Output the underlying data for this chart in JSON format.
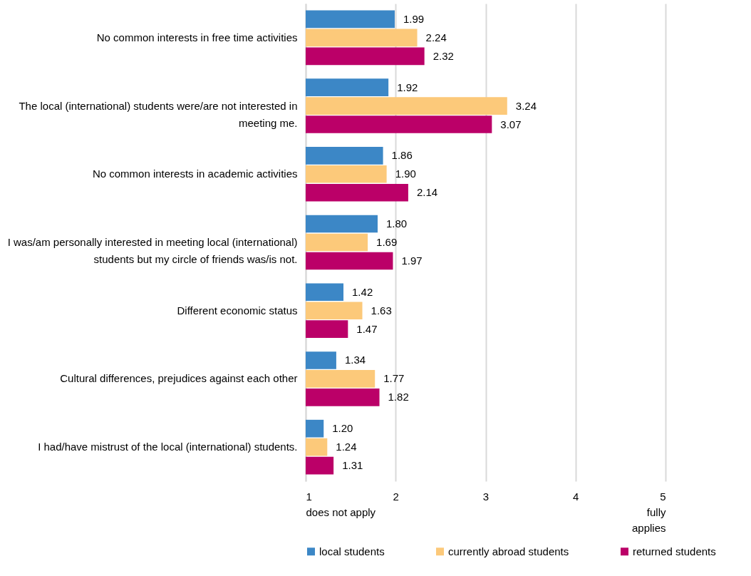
{
  "chart_data": {
    "type": "bar",
    "orientation": "horizontal",
    "categories": [
      "No common interests in free time activities",
      "The local (international) students were/are not interested in meeting me.",
      "No common interests in academic activities",
      "I was/am  personally interested in meeting local (international) students but my circle of friends was/is not.",
      "Different economic status",
      "Cultural differences, prejudices against each other",
      "I had/have mistrust of the local (international) students."
    ],
    "series": [
      {
        "name": "local students",
        "color": "#3c87c6",
        "values": [
          1.99,
          1.92,
          1.86,
          1.8,
          1.42,
          1.34,
          1.2
        ],
        "value_labels": [
          "1.99",
          "1.92",
          "1.86",
          "1.80",
          "1.42",
          "1.34",
          "1.20"
        ]
      },
      {
        "name": "currently abroad students",
        "color": "#fcc97a",
        "values": [
          2.24,
          3.24,
          1.9,
          1.69,
          1.63,
          1.77,
          1.24
        ],
        "value_labels": [
          "2.24",
          "3.24",
          "1.90",
          "1.69",
          "1.63",
          "1.77",
          "1.24"
        ]
      },
      {
        "name": "returned students",
        "color": "#bb0068",
        "values": [
          2.32,
          3.07,
          2.14,
          1.97,
          1.47,
          1.82,
          1.31
        ],
        "value_labels": [
          "2.32",
          "3.07",
          "2.14",
          "1.97",
          "1.47",
          "1.82",
          "1.31"
        ]
      }
    ],
    "xlim": [
      1,
      5
    ],
    "xticks": [
      {
        "value": 1,
        "label": "1\ndoes not apply"
      },
      2,
      3,
      4,
      {
        "value": 5,
        "label": "5\nfully\napplies"
      }
    ],
    "grid": "x",
    "legend": "bottom"
  }
}
